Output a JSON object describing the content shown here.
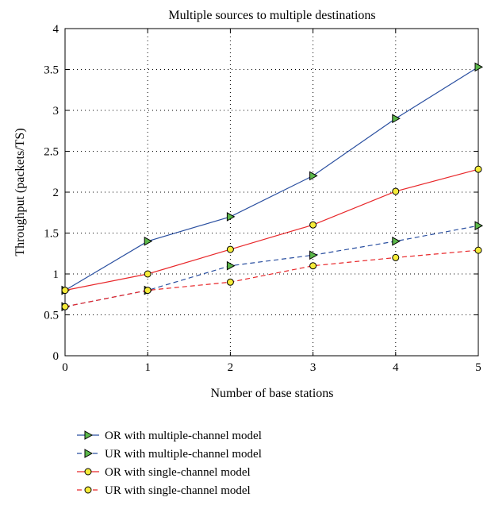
{
  "chart_data": {
    "type": "line",
    "title": "Multiple sources to multiple destinations",
    "xlabel": "Number of base stations",
    "ylabel": "Throughput (packets/TS)",
    "xlim": [
      0,
      5
    ],
    "ylim": [
      0,
      4
    ],
    "xticks": [
      0,
      1,
      2,
      3,
      4,
      5
    ],
    "yticks": [
      0,
      0.5,
      1,
      1.5,
      2,
      2.5,
      3,
      3.5,
      4
    ],
    "xtick_labels": [
      "0",
      "1",
      "2",
      "3",
      "4",
      "5"
    ],
    "ytick_labels": [
      "0",
      "0.5",
      "1",
      "1.5",
      "2",
      "2.5",
      "3",
      "3.5",
      "4"
    ],
    "grid": true,
    "legend_position": "below-plot",
    "x": [
      0,
      1,
      2,
      3,
      4,
      5
    ],
    "series": [
      {
        "name": "OR with multiple-channel model",
        "values": [
          0.8,
          1.4,
          1.7,
          2.2,
          2.9,
          3.53
        ],
        "color": "#2a4fa0",
        "dash": "solid",
        "marker": "triangle-right",
        "marker_fill": "#5cb84a"
      },
      {
        "name": "UR with multiple-channel model",
        "values": [
          0.6,
          0.8,
          1.1,
          1.23,
          1.4,
          1.59
        ],
        "color": "#2a4fa0",
        "dash": "dashed",
        "marker": "triangle-right",
        "marker_fill": "#5cb84a"
      },
      {
        "name": "OR with single-channel model",
        "values": [
          0.8,
          1.0,
          1.3,
          1.6,
          2.01,
          2.28
        ],
        "color": "#e8272a",
        "dash": "solid",
        "marker": "circle",
        "marker_fill": "#f5ec3a"
      },
      {
        "name": "UR with single-channel model",
        "values": [
          0.6,
          0.8,
          0.9,
          1.1,
          1.2,
          1.29
        ],
        "color": "#e8272a",
        "dash": "dashed",
        "marker": "circle",
        "marker_fill": "#f5ec3a"
      }
    ]
  }
}
